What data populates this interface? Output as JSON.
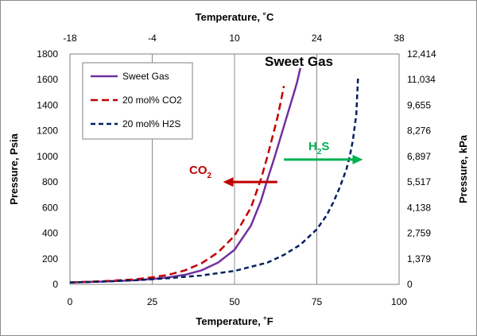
{
  "chart_data": {
    "type": "line",
    "xlabel_bottom": "Temperature, ˚F",
    "xlabel_top": "Temperature, ˚C",
    "ylabel_left": "Pressure, Psia",
    "ylabel_right": "Pressure, kPa",
    "xlim": [
      0,
      100
    ],
    "ylim": [
      0,
      1800
    ],
    "x_ticks": [
      "0",
      "25",
      "50",
      "75",
      "100"
    ],
    "x_tick_values": [
      0,
      25,
      50,
      75,
      100
    ],
    "top_ticks": [
      "-18",
      "-4",
      "10",
      "24",
      "38"
    ],
    "y_ticks": [
      "0",
      "200",
      "400",
      "600",
      "800",
      "1000",
      "1200",
      "1400",
      "1600",
      "1800"
    ],
    "y_tick_values": [
      0,
      200,
      400,
      600,
      800,
      1000,
      1200,
      1400,
      1600,
      1800
    ],
    "right_ticks": [
      "0",
      "1,379",
      "2,759",
      "4,138",
      "5,517",
      "6,897",
      "8,276",
      "9,655",
      "11,034",
      "12,414"
    ],
    "grid": "vertical",
    "legend_position": "top-left",
    "series": [
      {
        "name": "Sweet Gas",
        "color": "#7030a0",
        "dash": "solid",
        "x": [
          0,
          10,
          20,
          25,
          30,
          35,
          40,
          45,
          50,
          55,
          58,
          60,
          62,
          64,
          66,
          68,
          69,
          70
        ],
        "y": [
          15,
          22,
          33,
          42,
          55,
          75,
          110,
          170,
          270,
          460,
          650,
          820,
          980,
          1150,
          1320,
          1490,
          1580,
          1690
        ]
      },
      {
        "name": "20 mol% CO2",
        "color": "#c00000",
        "dash": "dashed",
        "x": [
          0,
          10,
          20,
          25,
          30,
          35,
          40,
          45,
          50,
          55,
          58,
          60,
          62,
          63,
          64,
          65
        ],
        "y": [
          15,
          25,
          40,
          55,
          75,
          110,
          165,
          250,
          380,
          600,
          820,
          1000,
          1200,
          1300,
          1420,
          1550
        ]
      },
      {
        "name": "20 mol% H2S",
        "color": "#002060",
        "dash": "dashed",
        "x": [
          0,
          10,
          20,
          30,
          40,
          50,
          60,
          65,
          70,
          75,
          78,
          80,
          82,
          84,
          85,
          86,
          87,
          87.5
        ],
        "y": [
          15,
          22,
          32,
          48,
          70,
          105,
          170,
          230,
          310,
          430,
          540,
          640,
          760,
          900,
          1000,
          1130,
          1330,
          1610
        ]
      }
    ],
    "annotations": {
      "sweet_gas": {
        "text": "Sweet Gas",
        "color": "#000000"
      },
      "co2": {
        "text": "CO",
        "subscript": "2",
        "color": "#c00000",
        "arrow_from": [
          63,
          800
        ],
        "arrow_to": [
          46.5,
          800
        ]
      },
      "h2s": {
        "text": "H",
        "subscript": "2",
        "suffix": "S",
        "color": "#00b050",
        "arrow_from": [
          65,
          975
        ],
        "arrow_to": [
          89,
          975
        ]
      }
    }
  }
}
